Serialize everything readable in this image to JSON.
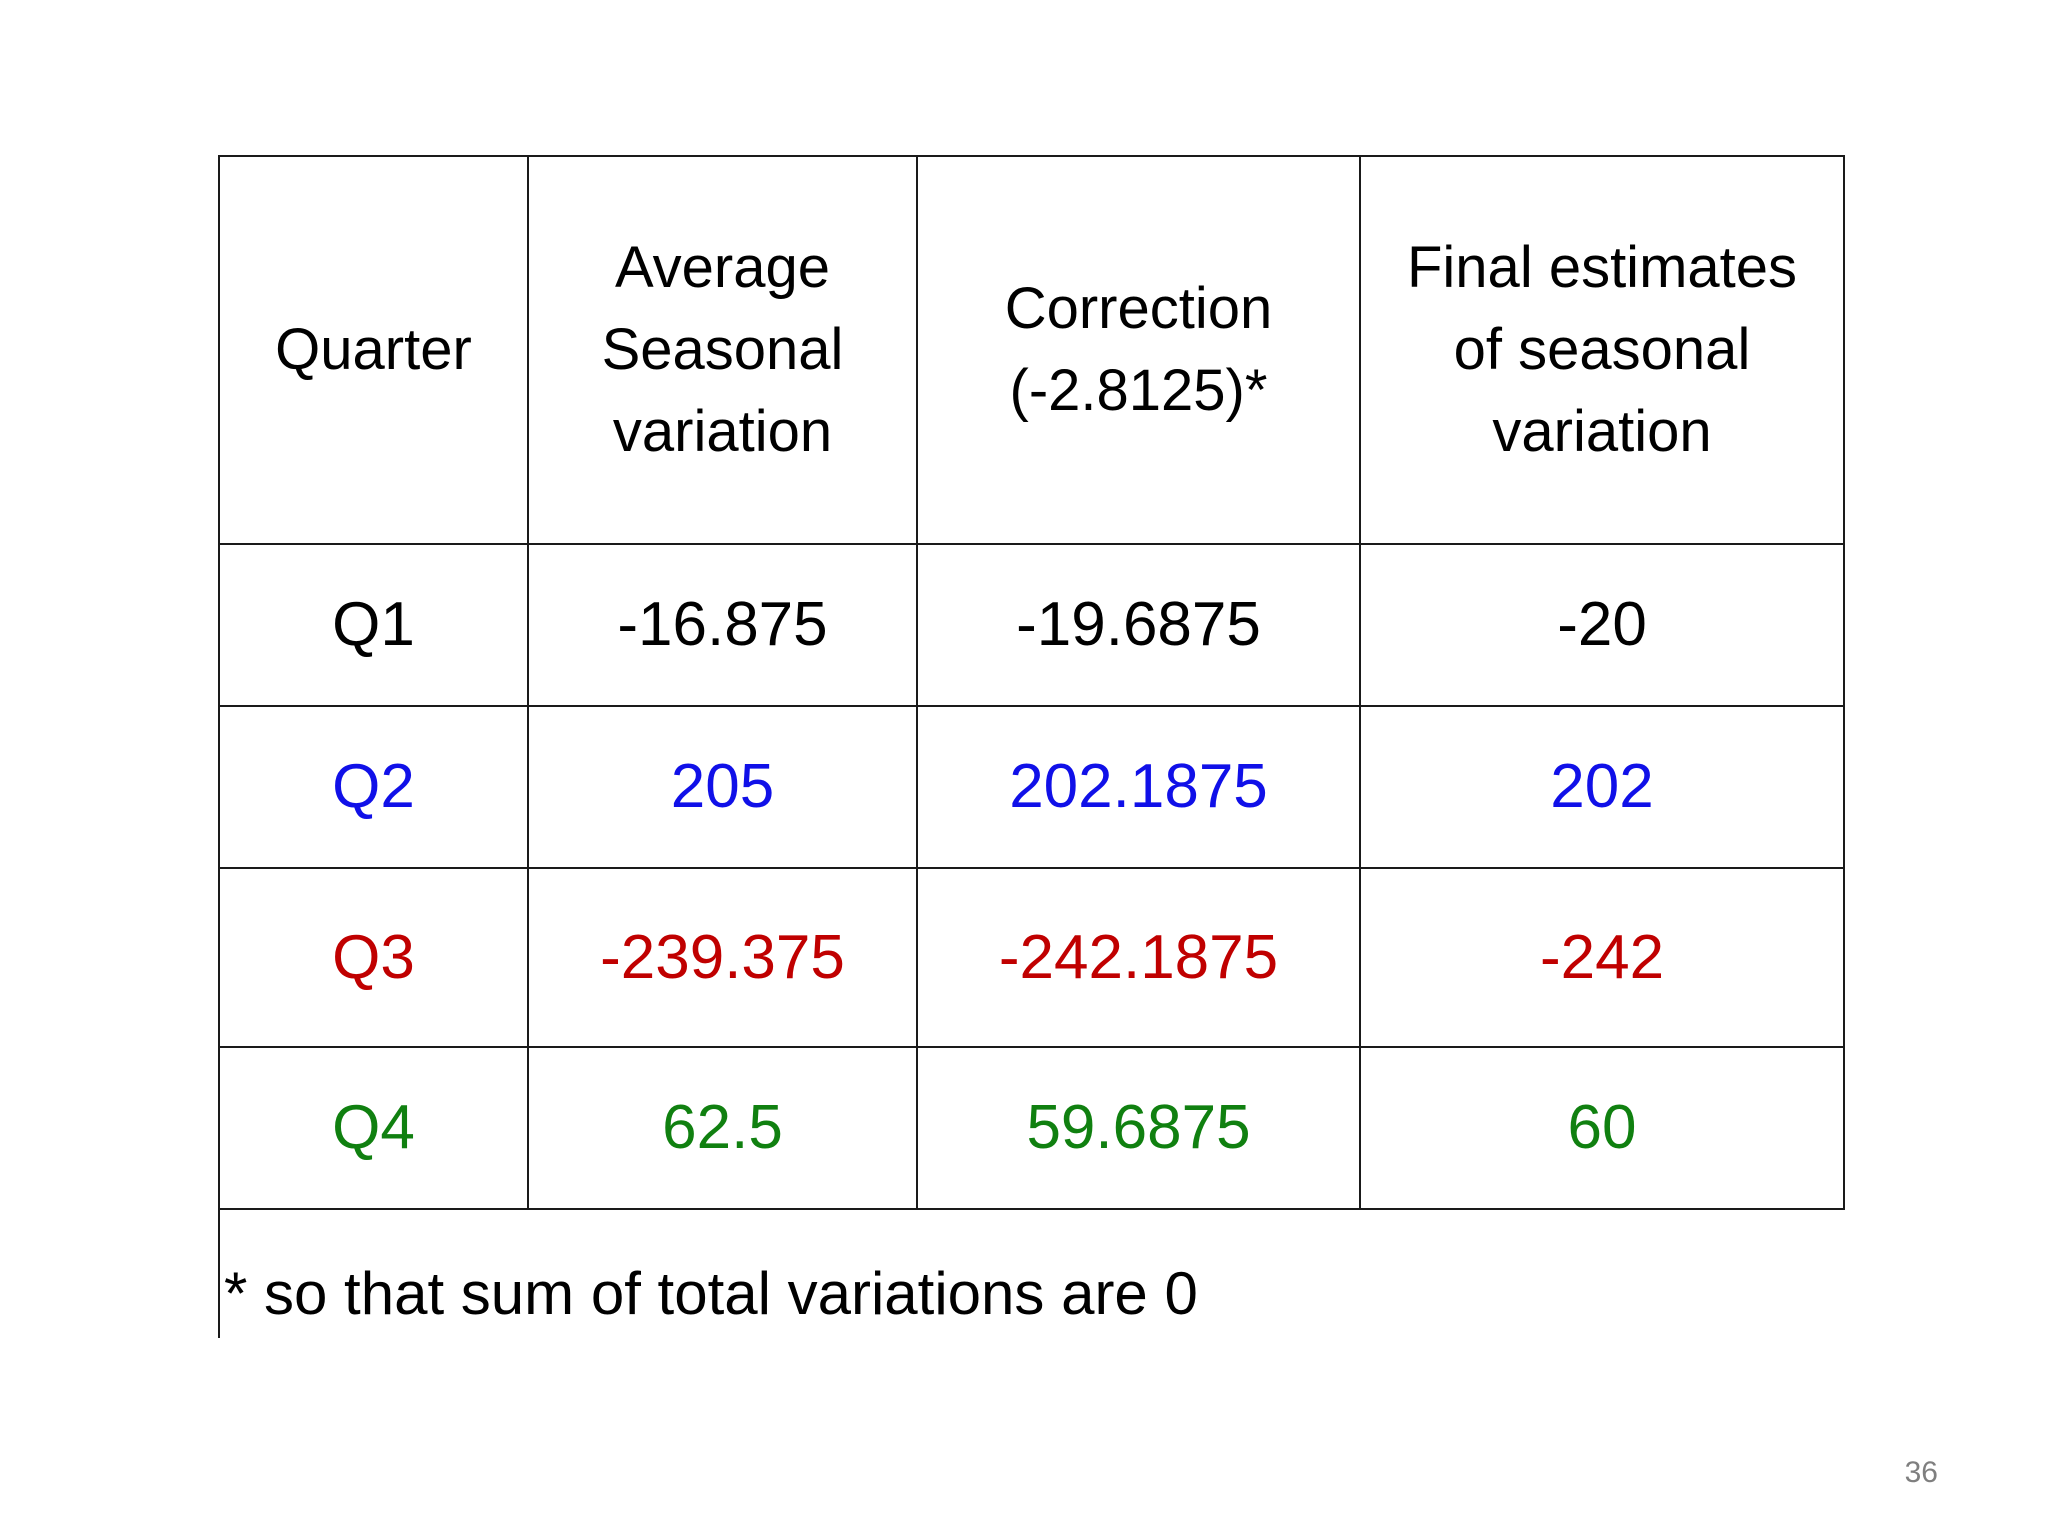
{
  "table": {
    "headers": [
      [
        "Quarter"
      ],
      [
        "Average",
        "Seasonal",
        "variation"
      ],
      [
        "Correction",
        "(-2.8125)*"
      ],
      [
        "Final estimates",
        "of seasonal",
        "variation"
      ]
    ],
    "rows": [
      {
        "color": "#000000",
        "cells": [
          "Q1",
          "-16.875",
          "-19.6875",
          "-20"
        ]
      },
      {
        "color": "#1010e8",
        "cells": [
          "Q2",
          "205",
          "202.1875",
          "202"
        ]
      },
      {
        "color": "#c00000",
        "cells": [
          "Q3",
          "-239.375",
          "-242.1875",
          "-242"
        ]
      },
      {
        "color": "#108010",
        "cells": [
          "Q4",
          "62.5",
          "59.6875",
          "60"
        ]
      }
    ]
  },
  "footnote": "* so that sum of total variations are 0",
  "page_number": "36"
}
